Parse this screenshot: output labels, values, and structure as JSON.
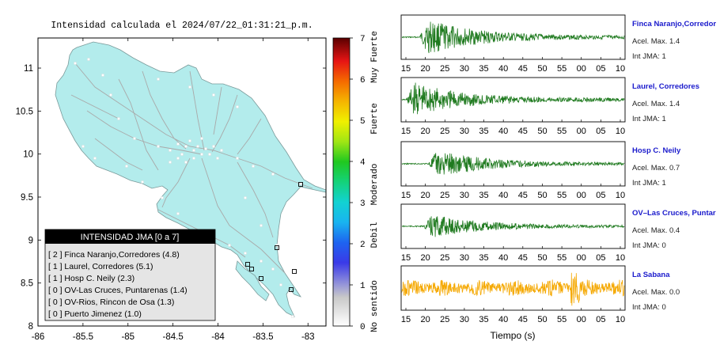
{
  "map": {
    "title": "Intensidad calculada el 2024/07/22_01:31:21_p.m.",
    "lon_ticks": [
      "-86",
      "-85.5",
      "-85",
      "-84.5",
      "-84",
      "-83.5",
      "-83"
    ],
    "lat_ticks": [
      "11",
      "10.5",
      "10",
      "9.5",
      "9",
      "8.5",
      "8"
    ],
    "lon_range": [
      -86,
      -82.8
    ],
    "lat_range": [
      8,
      11.35
    ],
    "land_color": "#b3ecec",
    "road_color": "#a9a9a9"
  },
  "colorbar": {
    "ticks": [
      "0",
      "1",
      "2",
      "3",
      "4",
      "5",
      "6",
      "7"
    ],
    "labels": [
      "No sentido",
      "Debil",
      "Moderado",
      "Fuerte",
      "Muy Fuerte"
    ],
    "range": [
      0,
      7
    ]
  },
  "legend": {
    "title": "INTENSIDAD JMA [0 a 7]",
    "items": [
      "[ 2 ]  Finca Naranjo,Corredores (4.8)",
      "[ 1 ]  Laurel, Corredores (5.1)",
      "[ 1 ]  Hosp C. Neily (2.3)",
      "[ 0 ]  OV-Las Cruces, Puntarenas (1.4)",
      "[ 0 ]  OV-Rios, Rincon de Osa (1.3)",
      "[ 0 ]  Puerto Jimenez (1.0)"
    ]
  },
  "seismograms": {
    "xlabel": "Tiempo (s)",
    "x_ticks": [
      "15",
      "20",
      "25",
      "30",
      "35",
      "40",
      "45",
      "50",
      "55",
      "00",
      "05",
      "10"
    ],
    "stations": [
      {
        "name": "Finca Naranjo,Corredor",
        "accel": "Acel. Max. 1.4",
        "jma": "Int JMA: 1",
        "color": "#1f7a1f",
        "onset": 0.08,
        "amp": 1.4
      },
      {
        "name": "Laurel, Corredores",
        "accel": "Acel. Max. 1.4",
        "jma": "Int JMA: 1",
        "color": "#1f7a1f",
        "onset": 0.02,
        "amp": 1.4
      },
      {
        "name": "Hosp C. Neily",
        "accel": "Acel. Max. 0.7",
        "jma": "Int JMA: 1",
        "color": "#1f7a1f",
        "onset": 0.12,
        "amp": 0.7
      },
      {
        "name": "OV–Las Cruces, Puntar",
        "accel": "Acel. Max. 0.4",
        "jma": "Int JMA: 0",
        "color": "#1f7a1f",
        "onset": 0.1,
        "amp": 0.4
      },
      {
        "name": "La Sabana",
        "accel": "Acel. Max. 0.0",
        "jma": "Int JMA: 0",
        "color": "#f5a800",
        "onset": 0.0,
        "amp": 0.0
      }
    ]
  },
  "chart_data": [
    {
      "type": "heatmap",
      "title": "Intensidad calculada el 2024/07/22_01:31:21_p.m.",
      "xlabel": "",
      "ylabel": "",
      "xlim": [
        -86,
        -82.8
      ],
      "ylim": [
        8,
        11.35
      ],
      "colorbar_range": [
        0,
        7
      ],
      "colorbar_labels": [
        "No sentido",
        "Debil",
        "Moderado",
        "Fuerte",
        "Muy Fuerte"
      ],
      "stations": [
        {
          "name": "Finca Naranjo,Corredores",
          "jma": 2,
          "value": 4.8
        },
        {
          "name": "Laurel, Corredores",
          "jma": 1,
          "value": 5.1
        },
        {
          "name": "Hosp C. Neily",
          "jma": 1,
          "value": 2.3
        },
        {
          "name": "OV-Las Cruces, Puntarenas",
          "jma": 0,
          "value": 1.4
        },
        {
          "name": "OV-Rios, Rincon de Osa",
          "jma": 0,
          "value": 1.3
        },
        {
          "name": "Puerto Jimenez",
          "jma": 0,
          "value": 1.0
        }
      ]
    },
    {
      "type": "line",
      "title": "",
      "xlabel": "Tiempo (s)",
      "x_ticks": [
        "15",
        "20",
        "25",
        "30",
        "35",
        "40",
        "45",
        "50",
        "55",
        "00",
        "05",
        "10"
      ],
      "series": [
        {
          "name": "Finca Naranjo,Corredor",
          "acel_max": 1.4,
          "int_jma": 1
        },
        {
          "name": "Laurel, Corredores",
          "acel_max": 1.4,
          "int_jma": 1
        },
        {
          "name": "Hosp C. Neily",
          "acel_max": 0.7,
          "int_jma": 1
        },
        {
          "name": "OV–Las Cruces, Puntar",
          "acel_max": 0.4,
          "int_jma": 0
        },
        {
          "name": "La Sabana",
          "acel_max": 0.0,
          "int_jma": 0
        }
      ]
    }
  ]
}
